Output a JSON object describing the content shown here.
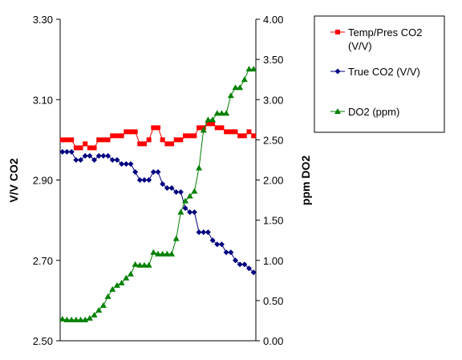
{
  "chart_data": {
    "type": "line",
    "x": [
      1,
      2,
      3,
      4,
      5,
      6,
      7,
      8,
      9,
      10,
      11,
      12,
      13,
      14,
      15,
      16,
      17,
      18,
      19,
      20,
      21,
      22,
      23,
      24,
      25,
      26,
      27,
      28,
      29,
      30,
      31,
      32,
      33,
      34,
      35,
      36,
      37,
      38,
      39,
      40,
      41,
      42,
      43
    ],
    "ylabel_left": "V/V CO2",
    "ylabel_right": "ppm DO2",
    "ylim_left": [
      2.5,
      3.3
    ],
    "ylim_right": [
      0,
      4
    ],
    "yticks_left": [
      "2.50",
      "2.70",
      "2.90",
      "3.10",
      "3.30"
    ],
    "yticks_right": [
      "0.00",
      "0.50",
      "1.00",
      "1.50",
      "2.00",
      "2.50",
      "3.00",
      "3.50",
      "4.00"
    ],
    "grid": false,
    "legend_position": "right",
    "series": [
      {
        "name": "Temp/Pres CO2 (V/V)",
        "axis": "left",
        "color": "#ff0000",
        "marker": "square",
        "values": [
          3.0,
          3.0,
          3.0,
          2.98,
          2.98,
          2.99,
          2.98,
          2.98,
          3.0,
          3.0,
          3.0,
          3.01,
          3.01,
          3.01,
          3.02,
          3.02,
          3.02,
          2.99,
          2.99,
          3.0,
          3.03,
          3.03,
          3.0,
          2.99,
          2.99,
          3.0,
          3.0,
          3.01,
          3.01,
          3.01,
          3.03,
          3.03,
          3.04,
          3.04,
          3.03,
          3.03,
          3.02,
          3.02,
          3.02,
          3.01,
          3.01,
          3.02,
          3.01
        ]
      },
      {
        "name": "True CO2 (V/V)",
        "axis": "left",
        "color": "#000080",
        "marker": "diamond",
        "values": [
          2.97,
          2.97,
          2.97,
          2.95,
          2.95,
          2.96,
          2.96,
          2.95,
          2.96,
          2.96,
          2.96,
          2.95,
          2.95,
          2.94,
          2.94,
          2.94,
          2.92,
          2.9,
          2.9,
          2.9,
          2.92,
          2.92,
          2.89,
          2.88,
          2.88,
          2.87,
          2.87,
          2.83,
          2.82,
          2.82,
          2.77,
          2.77,
          2.77,
          2.75,
          2.74,
          2.74,
          2.72,
          2.72,
          2.7,
          2.69,
          2.69,
          2.68,
          2.67
        ]
      },
      {
        "name": "DO2 (ppm)",
        "axis": "right",
        "color": "#008000",
        "marker": "triangle",
        "values": [
          0.27,
          0.26,
          0.26,
          0.26,
          0.26,
          0.26,
          0.28,
          0.32,
          0.38,
          0.44,
          0.55,
          0.64,
          0.69,
          0.72,
          0.78,
          0.83,
          0.95,
          0.94,
          0.94,
          0.94,
          1.1,
          1.08,
          1.08,
          1.08,
          1.08,
          1.27,
          1.6,
          1.74,
          1.8,
          1.86,
          2.15,
          2.62,
          2.75,
          2.75,
          2.83,
          2.83,
          2.83,
          3.05,
          3.15,
          3.15,
          3.25,
          3.38,
          3.38
        ]
      }
    ]
  }
}
